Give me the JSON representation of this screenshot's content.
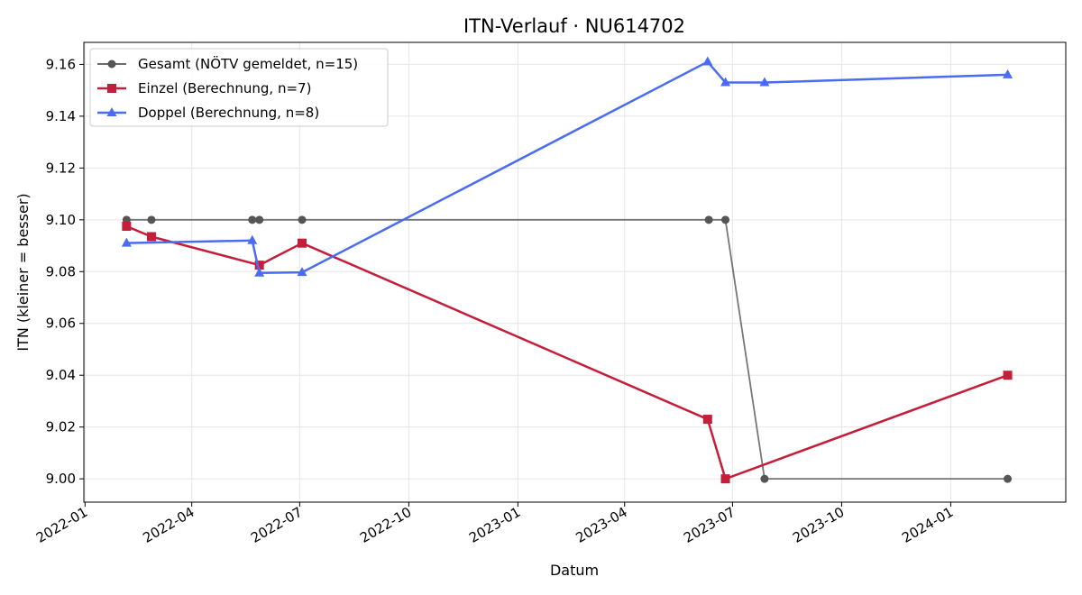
{
  "chart_data": {
    "type": "line",
    "title": "ITN-Verlauf · NU614702",
    "xlabel": "Datum",
    "ylabel": "ITN  (kleiner = besser)",
    "x_ticks": [
      "2022-01",
      "2022-04",
      "2022-07",
      "2022-10",
      "2023-01",
      "2023-04",
      "2023-07",
      "2023-10",
      "2024-01"
    ],
    "y_ticks": [
      "9.00",
      "9.02",
      "9.04",
      "9.06",
      "9.08",
      "9.10",
      "9.12",
      "9.14",
      "9.16"
    ],
    "xlim": [
      "2021-12-31",
      "2024-04-07"
    ],
    "ylim": [
      8.991,
      9.1685
    ],
    "grid": true,
    "legend_position": "top-left",
    "series": [
      {
        "name": "Gesamt (NÖTV gemeldet, n=15)",
        "color": "#555555",
        "marker": "circle",
        "points": [
          {
            "x": "2022-02-05",
            "y": 9.1
          },
          {
            "x": "2022-02-26",
            "y": 9.1
          },
          {
            "x": "2022-05-22",
            "y": 9.1
          },
          {
            "x": "2022-05-28",
            "y": 9.1
          },
          {
            "x": "2022-07-03",
            "y": 9.1
          },
          {
            "x": "2023-06-11",
            "y": 9.1
          },
          {
            "x": "2023-06-25",
            "y": 9.1
          },
          {
            "x": "2023-07-28",
            "y": 9.0
          },
          {
            "x": "2024-02-18",
            "y": 9.0
          }
        ]
      },
      {
        "name": "Einzel (Berechnung, n=7)",
        "color": "#c41e3a",
        "marker": "square",
        "points": [
          {
            "x": "2022-02-05",
            "y": 9.0975
          },
          {
            "x": "2022-02-26",
            "y": 9.0935
          },
          {
            "x": "2022-05-28",
            "y": 9.0825
          },
          {
            "x": "2022-07-03",
            "y": 9.091
          },
          {
            "x": "2023-06-10",
            "y": 9.023
          },
          {
            "x": "2023-06-25",
            "y": 9.0
          },
          {
            "x": "2024-02-18",
            "y": 9.04
          }
        ]
      },
      {
        "name": "Doppel (Berechnung, n=8)",
        "color": "#4a6cf0",
        "marker": "triangle",
        "points": [
          {
            "x": "2022-02-05",
            "y": 9.091
          },
          {
            "x": "2022-05-22",
            "y": 9.092
          },
          {
            "x": "2022-05-28",
            "y": 9.0795
          },
          {
            "x": "2022-07-03",
            "y": 9.0797
          },
          {
            "x": "2023-06-10",
            "y": 9.161
          },
          {
            "x": "2023-06-25",
            "y": 9.153
          },
          {
            "x": "2023-07-28",
            "y": 9.153
          },
          {
            "x": "2024-02-18",
            "y": 9.156
          }
        ]
      }
    ]
  }
}
